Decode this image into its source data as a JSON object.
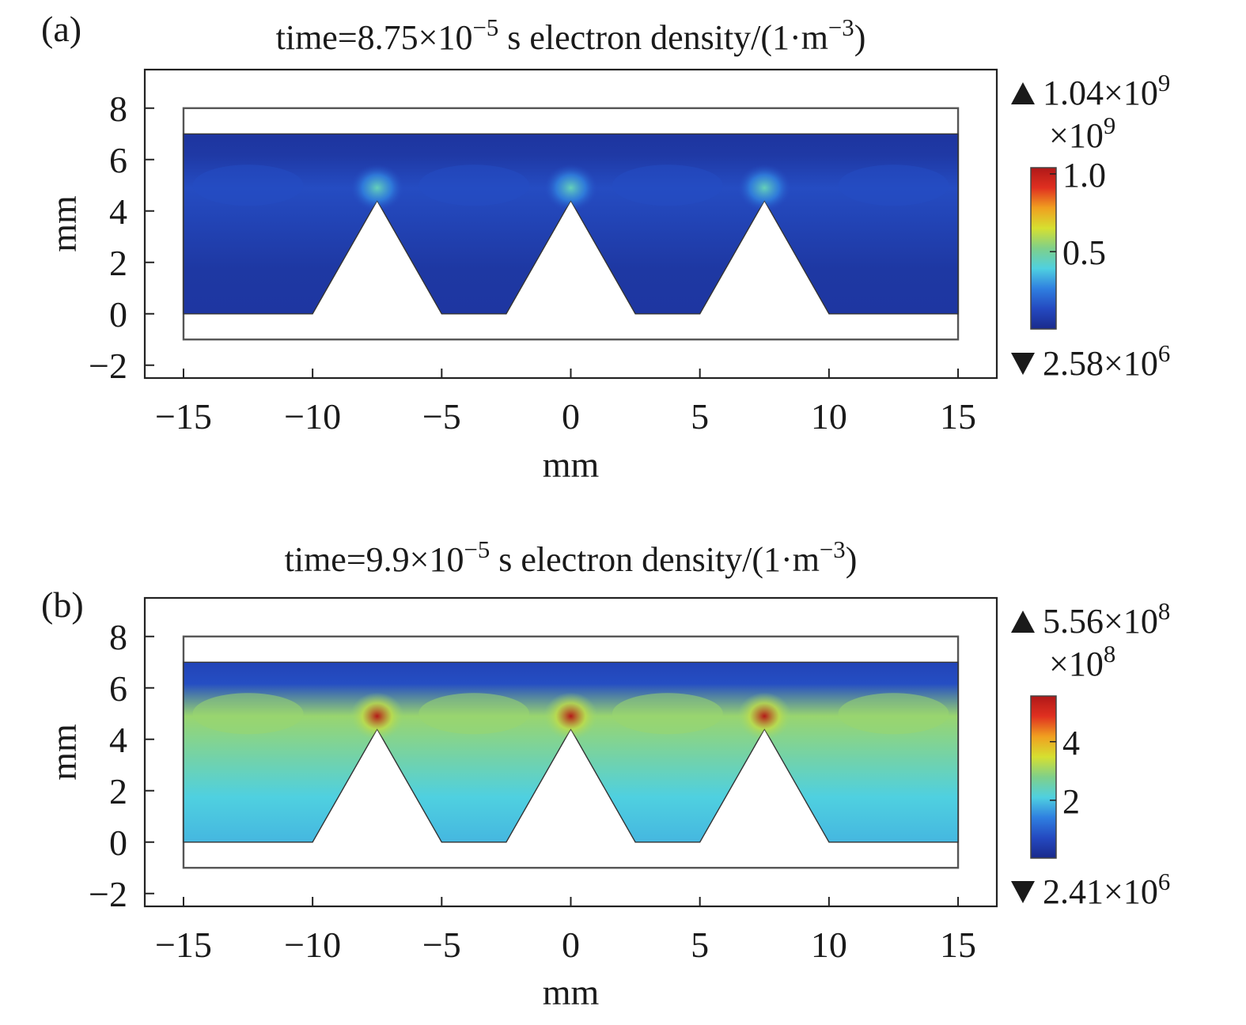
{
  "figure": {
    "colormap": [
      "#1a2a8c",
      "#2449c0",
      "#2f7fe0",
      "#4fd0e0",
      "#7fd08a",
      "#d6e030",
      "#f0a020",
      "#e03020",
      "#b01818"
    ]
  },
  "chart_data": [
    {
      "panel_label": "(a)",
      "type": "heatmap",
      "title": {
        "prefix": "time=8.75×10",
        "exp": "−5",
        "mid": " s electron density/(1·m",
        "unit_exp": "−3",
        "suffix": ")"
      },
      "xlabel": "mm",
      "ylabel": "mm",
      "xlim": [
        -16.5,
        16.5
      ],
      "ylim": [
        -2.5,
        9.5
      ],
      "xticks": [
        {
          "v": -15,
          "label": "−15"
        },
        {
          "v": -10,
          "label": "−10"
        },
        {
          "v": -5,
          "label": "−5"
        },
        {
          "v": 0,
          "label": "0"
        },
        {
          "v": 5,
          "label": "5"
        },
        {
          "v": 10,
          "label": "10"
        },
        {
          "v": 15,
          "label": "15"
        }
      ],
      "yticks": [
        {
          "v": 8,
          "label": "8"
        },
        {
          "v": 6,
          "label": "6"
        },
        {
          "v": 4,
          "label": "4"
        },
        {
          "v": 2,
          "label": "2"
        },
        {
          "v": 0,
          "label": "0"
        },
        {
          "v": -2,
          "label": "−2"
        }
      ],
      "domain": {
        "outer": [
          -15,
          15,
          -1,
          8
        ],
        "plasma_top": 7,
        "plasma_bottom": 0
      },
      "teeth": [
        {
          "base": [
            -10,
            -5
          ],
          "apex": [
            -7.5,
            4.4
          ]
        },
        {
          "base": [
            -2.5,
            2.5
          ],
          "apex": [
            0,
            4.4
          ]
        },
        {
          "base": [
            5,
            10
          ],
          "apex": [
            7.5,
            4.4
          ]
        }
      ],
      "field": {
        "background": 0.06,
        "bulk": 0.14,
        "top_band": 0.05,
        "hotspot": 0.45
      },
      "colorbar": {
        "max_label": {
          "base": "1.04×10",
          "exp": "9"
        },
        "scale_label": {
          "base": "×10",
          "exp": "9"
        },
        "min_label": {
          "base": "2.58×10",
          "exp": "6"
        },
        "range": [
          0.00258,
          1.04
        ],
        "ticks": [
          {
            "v": 1.0,
            "label": "1.0"
          },
          {
            "v": 0.5,
            "label": "0.5"
          }
        ]
      }
    },
    {
      "panel_label": "(b)",
      "type": "heatmap",
      "title": {
        "prefix": "time=9.9×10",
        "exp": "−5",
        "mid": " s electron density/(1·m",
        "unit_exp": "−3",
        "suffix": ")"
      },
      "xlabel": "mm",
      "ylabel": "mm",
      "xlim": [
        -16.5,
        16.5
      ],
      "ylim": [
        -2.5,
        9.5
      ],
      "xticks": [
        {
          "v": -15,
          "label": "−15"
        },
        {
          "v": -10,
          "label": "−10"
        },
        {
          "v": -5,
          "label": "−5"
        },
        {
          "v": 0,
          "label": "0"
        },
        {
          "v": 5,
          "label": "5"
        },
        {
          "v": 10,
          "label": "10"
        },
        {
          "v": 15,
          "label": "15"
        }
      ],
      "yticks": [
        {
          "v": 8,
          "label": "8"
        },
        {
          "v": 6,
          "label": "6"
        },
        {
          "v": 4,
          "label": "4"
        },
        {
          "v": 2,
          "label": "2"
        },
        {
          "v": 0,
          "label": "0"
        },
        {
          "v": -2,
          "label": "−2"
        }
      ],
      "domain": {
        "outer": [
          -15,
          15,
          -1,
          8
        ],
        "plasma_top": 7,
        "plasma_bottom": 0
      },
      "teeth": [
        {
          "base": [
            -10,
            -5
          ],
          "apex": [
            -7.5,
            4.4
          ]
        },
        {
          "base": [
            -2.5,
            2.5
          ],
          "apex": [
            0,
            4.4
          ]
        },
        {
          "base": [
            5,
            10
          ],
          "apex": [
            7.5,
            4.4
          ]
        }
      ],
      "field": {
        "background": 2.1,
        "bulk": 3.0,
        "top_band": 0.6,
        "hotspot": 5.5
      },
      "colorbar": {
        "max_label": {
          "base": "5.56×10",
          "exp": "8"
        },
        "scale_label": {
          "base": "×10",
          "exp": "8"
        },
        "min_label": {
          "base": "2.41×10",
          "exp": "6"
        },
        "range": [
          0.0241,
          5.56
        ],
        "ticks": [
          {
            "v": 4,
            "label": "4"
          },
          {
            "v": 2,
            "label": "2"
          }
        ]
      }
    }
  ]
}
